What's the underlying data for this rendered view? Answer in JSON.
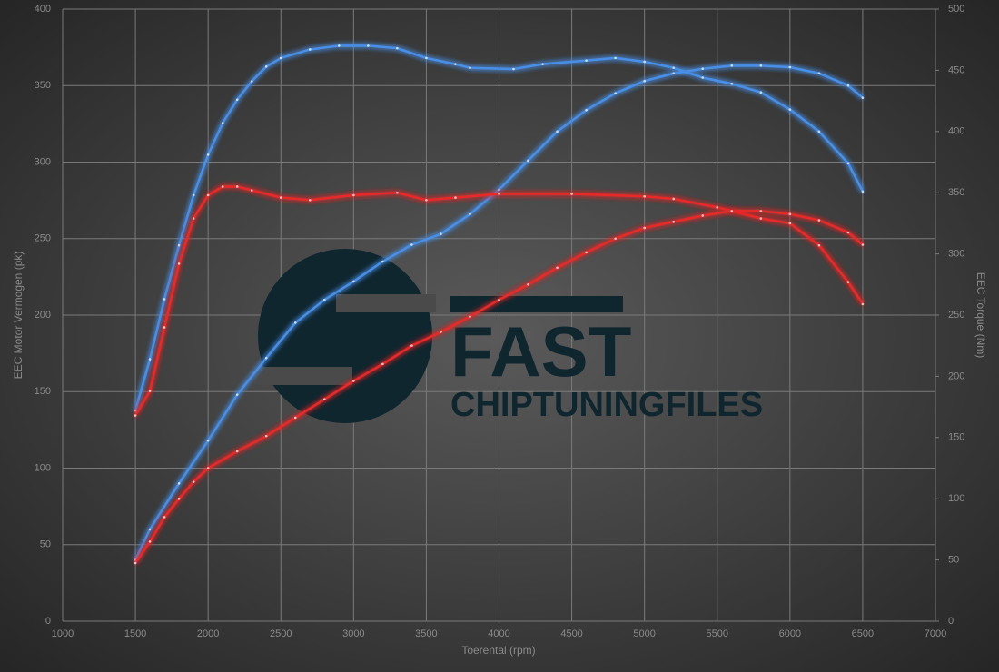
{
  "logo": {
    "line1": "FAST",
    "line2": "CHIPTUNINGFILES"
  },
  "chart_data": {
    "type": "line",
    "xlabel": "Toerental (rpm)",
    "ylabel": "EEC Motor Vermogen (pk)",
    "y2label": "EEC Torque (Nm)",
    "xlim": [
      1000,
      7000
    ],
    "xticks": [
      1000,
      1500,
      2000,
      2500,
      3000,
      3500,
      4000,
      4500,
      5000,
      5500,
      6000,
      6500,
      7000
    ],
    "ylim": [
      0,
      400
    ],
    "yticks": [
      0,
      50,
      100,
      150,
      200,
      250,
      300,
      350,
      400
    ],
    "y2lim": [
      0,
      500
    ],
    "y2ticks": [
      0,
      50,
      100,
      150,
      200,
      250,
      300,
      350,
      400,
      450,
      500
    ],
    "grid": true,
    "series": [
      {
        "color": "#4a8fe6",
        "axis": "y2",
        "x": [
          1500,
          1600,
          1700,
          1800,
          1900,
          2000,
          2100,
          2200,
          2300,
          2400,
          2500,
          2700,
          2900,
          3100,
          3300,
          3500,
          3700,
          3800,
          4100,
          4300,
          4600,
          4800,
          5000,
          5200,
          5400,
          5600,
          5800,
          6000,
          6200,
          6400,
          6500
        ],
        "values": [
          172,
          214,
          263,
          307,
          348,
          381,
          407,
          426,
          441,
          453,
          460,
          467,
          470,
          470,
          468,
          460,
          455,
          452,
          451,
          455,
          458,
          460,
          457,
          452,
          444,
          439,
          432,
          418,
          400,
          374,
          351
        ]
      },
      {
        "color": "#4a8fe6",
        "x": [
          1500,
          1600,
          1800,
          2000,
          2200,
          2400,
          2600,
          2800,
          3000,
          3200,
          3400,
          3600,
          3800,
          4000,
          4200,
          4400,
          4600,
          4800,
          5000,
          5200,
          5400,
          5600,
          5800,
          6000,
          6200,
          6400,
          6500
        ],
        "values": [
          40,
          60,
          90,
          118,
          148,
          172,
          195,
          210,
          222,
          235,
          246,
          253,
          266,
          282,
          301,
          320,
          334,
          345,
          353,
          358,
          361,
          363,
          363,
          362,
          358,
          350,
          342
        ]
      },
      {
        "color": "#e62a2a",
        "axis": "y2",
        "x": [
          1500,
          1600,
          1700,
          1800,
          1900,
          2000,
          2100,
          2200,
          2300,
          2500,
          2700,
          3000,
          3300,
          3500,
          3700,
          4000,
          4500,
          5000,
          5200,
          5500,
          5800,
          6000,
          6200,
          6400,
          6500
        ],
        "values": [
          168,
          188,
          240,
          292,
          329,
          348,
          355,
          355,
          352,
          346,
          344,
          348,
          350,
          344,
          346,
          349,
          349,
          347,
          345,
          338,
          329,
          325,
          307,
          277,
          259
        ]
      },
      {
        "color": "#e62a2a",
        "x": [
          1500,
          1600,
          1700,
          1800,
          1900,
          2000,
          2200,
          2400,
          2600,
          2800,
          3000,
          3200,
          3400,
          3600,
          3800,
          4000,
          4200,
          4400,
          4600,
          4800,
          5000,
          5200,
          5400,
          5600,
          5800,
          6000,
          6200,
          6400,
          6500
        ],
        "values": [
          38,
          52,
          68,
          80,
          91,
          100,
          111,
          121,
          133,
          145,
          157,
          168,
          180,
          189,
          199,
          210,
          220,
          231,
          241,
          250,
          257,
          261,
          265,
          268,
          268,
          266,
          262,
          254,
          246
        ]
      }
    ]
  }
}
